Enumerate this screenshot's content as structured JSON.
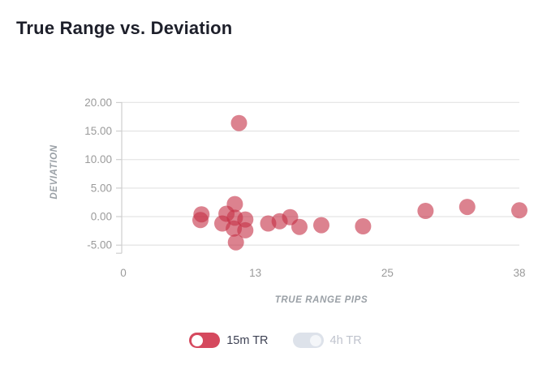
{
  "title": "True Range vs. Deviation",
  "colors": {
    "title_text": "#1d1f2a",
    "tick_text": "#9b9b9b",
    "axis_title_text": "#9aa0a6",
    "grid": "#e6e6e6",
    "axis_line": "#cfcfcf",
    "point_fill": "rgba(197,46,68,0.6)",
    "toggle_on": "#d5495e",
    "toggle_off": "#dde2ea",
    "legend_on_text": "#3d4153",
    "legend_off_text": "#bfc3cd"
  },
  "chart_data": {
    "type": "scatter",
    "title": "True Range vs. Deviation",
    "xlabel": "TRUE RANGE PIPS",
    "ylabel": "DEVIATION",
    "x_tick_labels": [
      "0",
      "13",
      "25",
      "38"
    ],
    "y_tick_labels": [
      "20.00",
      "15.00",
      "10.00",
      "5.00",
      "0.00",
      "-5.00"
    ],
    "y_tick_values": [
      20,
      15,
      10,
      5,
      0,
      -5
    ],
    "xlim": [
      0,
      38
    ],
    "ylim": [
      -7.5,
      21
    ],
    "grid": true,
    "legend_position": "bottom",
    "point_radius_px": 10,
    "series": [
      {
        "name": "15m TR",
        "enabled": true,
        "points": [
          [
            7.5,
            0.4
          ],
          [
            7.4,
            -0.6
          ],
          [
            9.5,
            -1.2
          ],
          [
            9.9,
            0.5
          ],
          [
            10.6,
            -2.1
          ],
          [
            10.7,
            2.2
          ],
          [
            10.7,
            -0.2
          ],
          [
            10.8,
            -4.5
          ],
          [
            11.1,
            16.4
          ],
          [
            11.7,
            -0.5
          ],
          [
            11.7,
            -2.4
          ],
          [
            13.9,
            -1.2
          ],
          [
            15.0,
            -0.8
          ],
          [
            16.0,
            -0.1
          ],
          [
            16.9,
            -1.8
          ],
          [
            19.0,
            -1.5
          ],
          [
            23.0,
            -1.7
          ],
          [
            29.0,
            1.0
          ],
          [
            33.0,
            1.7
          ],
          [
            38.0,
            1.1
          ]
        ]
      },
      {
        "name": "4h TR",
        "enabled": false,
        "points": []
      }
    ]
  },
  "legend": {
    "items": [
      {
        "label": "15m TR",
        "state": "on"
      },
      {
        "label": "4h TR",
        "state": "off"
      }
    ]
  }
}
